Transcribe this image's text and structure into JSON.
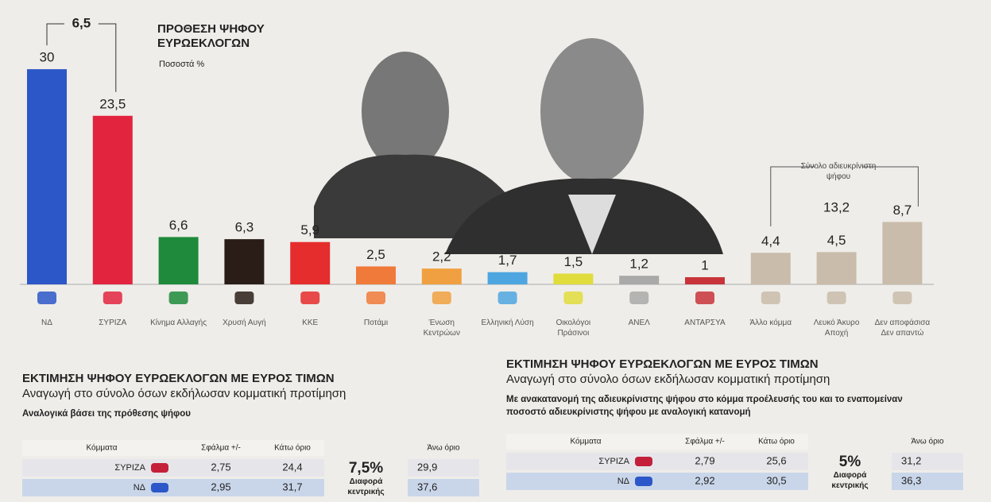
{
  "chart_data": {
    "type": "bar",
    "title": "ΠΡΟΘΕΣΗ ΨΗΦΟΥ ΕΥΡΩΕΚΛΟΓΩΝ",
    "subtitle": "Ποσοστά %",
    "categories": [
      "ΝΔ",
      "ΣΥΡΙΖΑ",
      "Κίνημα Αλλαγής",
      "Χρυσή Αυγή",
      "ΚΚΕ",
      "Ποτάμι",
      "Ένωση Κεντρώων",
      "Ελληνική Λύση",
      "Οικολόγοι Πράσινοι",
      "ΑΝΕΛ",
      "ΑΝΤΑΡΣΥΑ",
      "Άλλο κόμμα",
      "Λευκό Άκυρο Αποχή",
      "Δεν αποφάσισα Δεν απαντώ"
    ],
    "values": [
      30,
      23.5,
      6.6,
      6.3,
      5.9,
      2.5,
      2.2,
      1.7,
      1.5,
      1.2,
      1,
      4.4,
      4.5,
      8.7
    ],
    "value_labels": [
      "30",
      "23,5",
      "6,6",
      "6,3",
      "5,9",
      "2,5",
      "2,2",
      "1,7",
      "1,5",
      "1,2",
      "1",
      "4,4",
      "4,5",
      "8,7"
    ],
    "colors": [
      "#2c57c8",
      "#e3243f",
      "#1f8a3b",
      "#2a1d17",
      "#e52d2d",
      "#f07a3a",
      "#f0a040",
      "#4da6e0",
      "#e0dc3c",
      "#a9a9a9",
      "#c8343a",
      "#c9bcaa",
      "#c9bcaa",
      "#c9bcaa"
    ],
    "gap": {
      "value": 6.5,
      "label": "6,5"
    },
    "undecided_total": {
      "text": "Σύνολο αδιευκρίνιστη ψήφου",
      "value": 13.2,
      "label": "13,2"
    }
  },
  "left_table": {
    "title": "ΕΚΤΙΜΗΣΗ ΨΗΦΟΥ ΕΥΡΩΕΚΛΟΓΩΝ ΜΕ ΕΥΡΟΣ ΤΙΜΩΝ",
    "subtitle": "Αναγωγή στο σύνολο όσων εκδήλωσαν κομματική προτίμηση",
    "note": "Αναλογικά βάσει της πρόθεσης ψήφου",
    "headers": [
      "Κόμματα",
      "Σφάλμα +/-",
      "Κάτω όριο",
      "Άνω όριο"
    ],
    "rows": [
      [
        "ΣΥΡΙΖΑ",
        "2,75",
        "24,4",
        "29,9"
      ],
      [
        "ΝΔ",
        "2,95",
        "31,7",
        "37,6"
      ]
    ],
    "difference": "7,5%",
    "difference_label": "Διαφορά κεντρικής"
  },
  "right_table": {
    "title": "ΕΚΤΙΜΗΣΗ ΨΗΦΟΥ ΕΥΡΩΕΚΛΟΓΩΝ ΜΕ ΕΥΡΟΣ ΤΙΜΩΝ",
    "subtitle": "Αναγωγή στο σύνολο όσων εκδήλωσαν κομματική προτίμηση",
    "note": "Με ανακατανομή της αδιευκρίνιστης ψήφου στο κόμμα προέλευσής του και το εναπομείναν ποσοστό αδιευκρίνιστης ψήφου με αναλογική κατανομή",
    "headers": [
      "Κόμματα",
      "Σφάλμα +/-",
      "Κάτω όριο",
      "Άνω όριο"
    ],
    "rows": [
      [
        "ΣΥΡΙΖΑ",
        "2,79",
        "25,6",
        "31,2"
      ],
      [
        "ΝΔ",
        "2,92",
        "30,5",
        "36,3"
      ]
    ],
    "difference": "5%",
    "difference_label": "Διαφορά κεντρικής"
  }
}
